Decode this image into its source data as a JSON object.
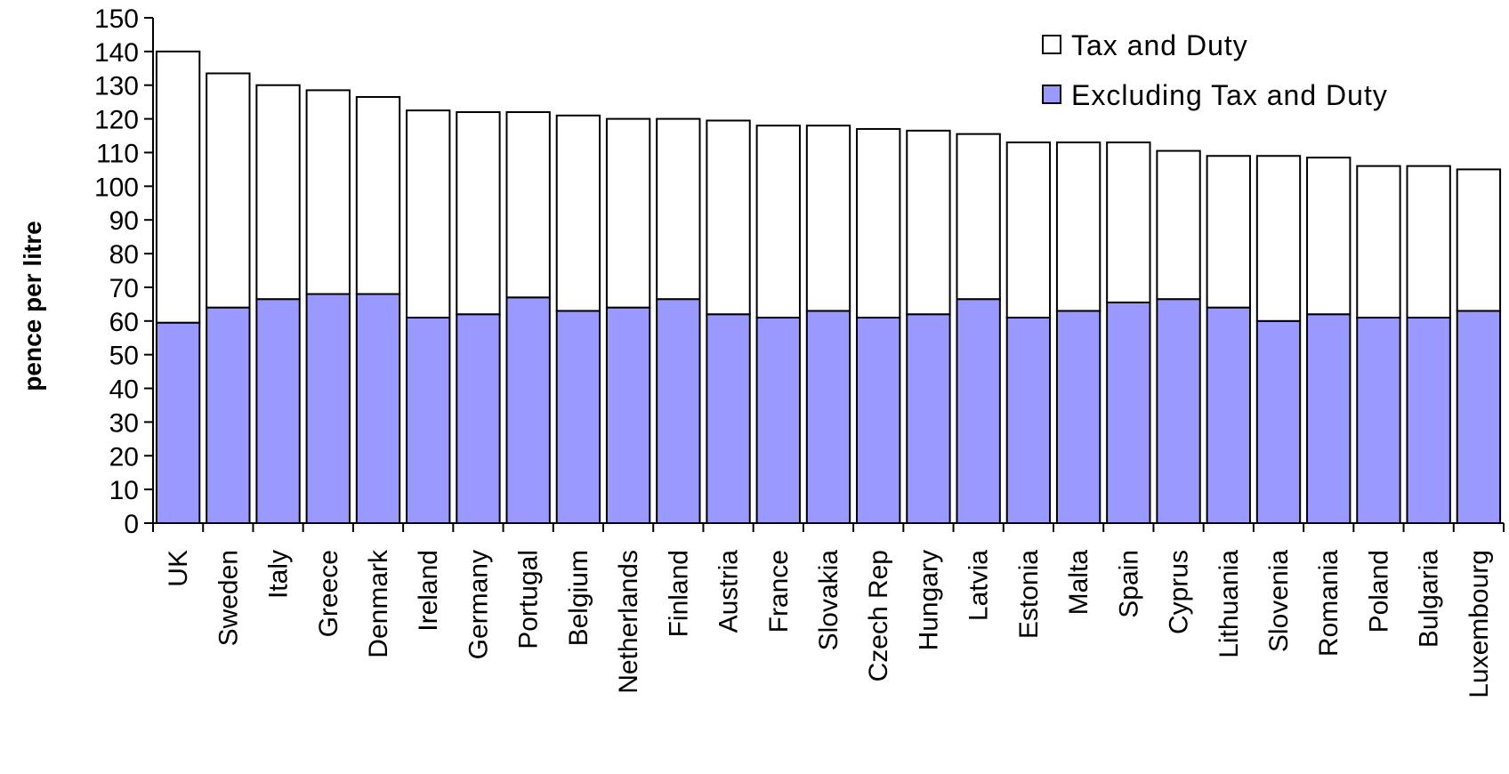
{
  "colors": {
    "tax": "#ffffff",
    "excl": "#9999ff",
    "stroke": "#000000"
  },
  "chart_data": {
    "type": "bar",
    "stacked": true,
    "ylabel": "pence per litre",
    "ylim": [
      0,
      150
    ],
    "yticks": [
      0,
      10,
      20,
      30,
      40,
      50,
      60,
      70,
      80,
      90,
      100,
      110,
      120,
      130,
      140,
      150
    ],
    "legend_position": "top-right",
    "grid": false,
    "categories": [
      "UK",
      "Sweden",
      "Italy",
      "Greece",
      "Denmark",
      "Ireland",
      "Germany",
      "Portugal",
      "Belgium",
      "Netherlands",
      "Finland",
      "Austria",
      "France",
      "Slovakia",
      "Czech Rep",
      "Hungary",
      "Latvia",
      "Estonia",
      "Malta",
      "Spain",
      "Cyprus",
      "Lithuania",
      "Slovenia",
      "Romania",
      "Poland",
      "Bulgaria",
      "Luxembourg"
    ],
    "series": [
      {
        "name": "Excluding Tax and Duty",
        "values": [
          59.5,
          64,
          66.5,
          68,
          68,
          61,
          62,
          67,
          63,
          64,
          66.5,
          62,
          61,
          63,
          61,
          62,
          66.5,
          61,
          63,
          65.5,
          66.5,
          64,
          60,
          62,
          61,
          61,
          63
        ]
      },
      {
        "name": "Tax and Duty",
        "values": [
          80.5,
          69.5,
          63.5,
          60.5,
          58.5,
          61.5,
          60,
          55,
          58,
          56,
          53.5,
          57.5,
          57,
          55,
          56,
          54.5,
          49,
          52,
          50,
          47.5,
          44,
          45,
          49,
          46.5,
          45,
          45,
          42
        ]
      }
    ]
  }
}
